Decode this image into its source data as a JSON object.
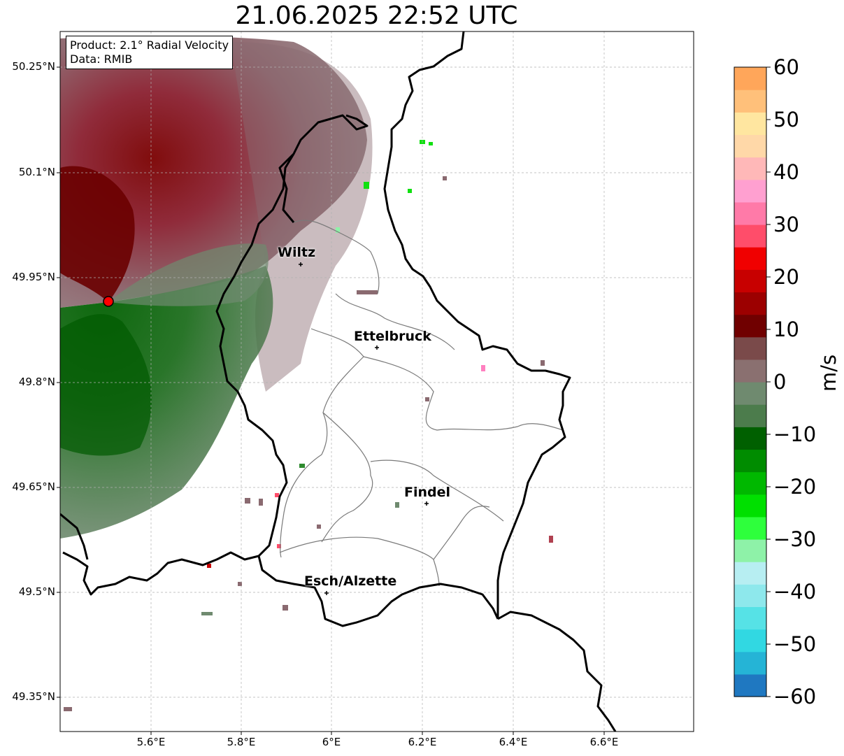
{
  "title": "21.06.2025 22:52 UTC",
  "info": {
    "product": "Product: 2.1° Radial Velocity",
    "data": "Data: RMIB"
  },
  "map": {
    "lat_ticks": [
      "50.25°N",
      "50.1°N",
      "49.95°N",
      "49.8°N",
      "49.65°N",
      "49.5°N",
      "49.35°N"
    ],
    "lon_ticks": [
      "5.6°E",
      "5.8°E",
      "6°E",
      "6.2°E",
      "6.4°E",
      "6.6°E"
    ],
    "radar_site_color": "#ff0000",
    "cities": [
      {
        "name": "Wiltz"
      },
      {
        "name": "Ettelbruck"
      },
      {
        "name": "Findel"
      },
      {
        "name": "Esch/Alzette"
      }
    ]
  },
  "colorbar": {
    "unit": "m/s",
    "ticks": [
      "60",
      "50",
      "40",
      "30",
      "20",
      "10",
      "0",
      "−10",
      "−20",
      "−30",
      "−40",
      "−50",
      "−60"
    ],
    "range": [
      -60,
      60
    ],
    "colors_low_to_high": [
      "#1f78c1",
      "#25b4d6",
      "#31d8e2",
      "#56e2e6",
      "#8ee8ec",
      "#b7eef2",
      "#8ef2a8",
      "#2eff3c",
      "#00e000",
      "#00b800",
      "#008c00",
      "#006000",
      "#4c7c4c",
      "#6f8a6f",
      "#8a7070",
      "#7a4a4a",
      "#700000",
      "#9c0000",
      "#c80000",
      "#f00000",
      "#ff4d6a",
      "#ff7aa8",
      "#ffa0d0",
      "#ffb8b8",
      "#ffd8a8",
      "#ffe6a0",
      "#ffc07a",
      "#ffa65a"
    ]
  }
}
